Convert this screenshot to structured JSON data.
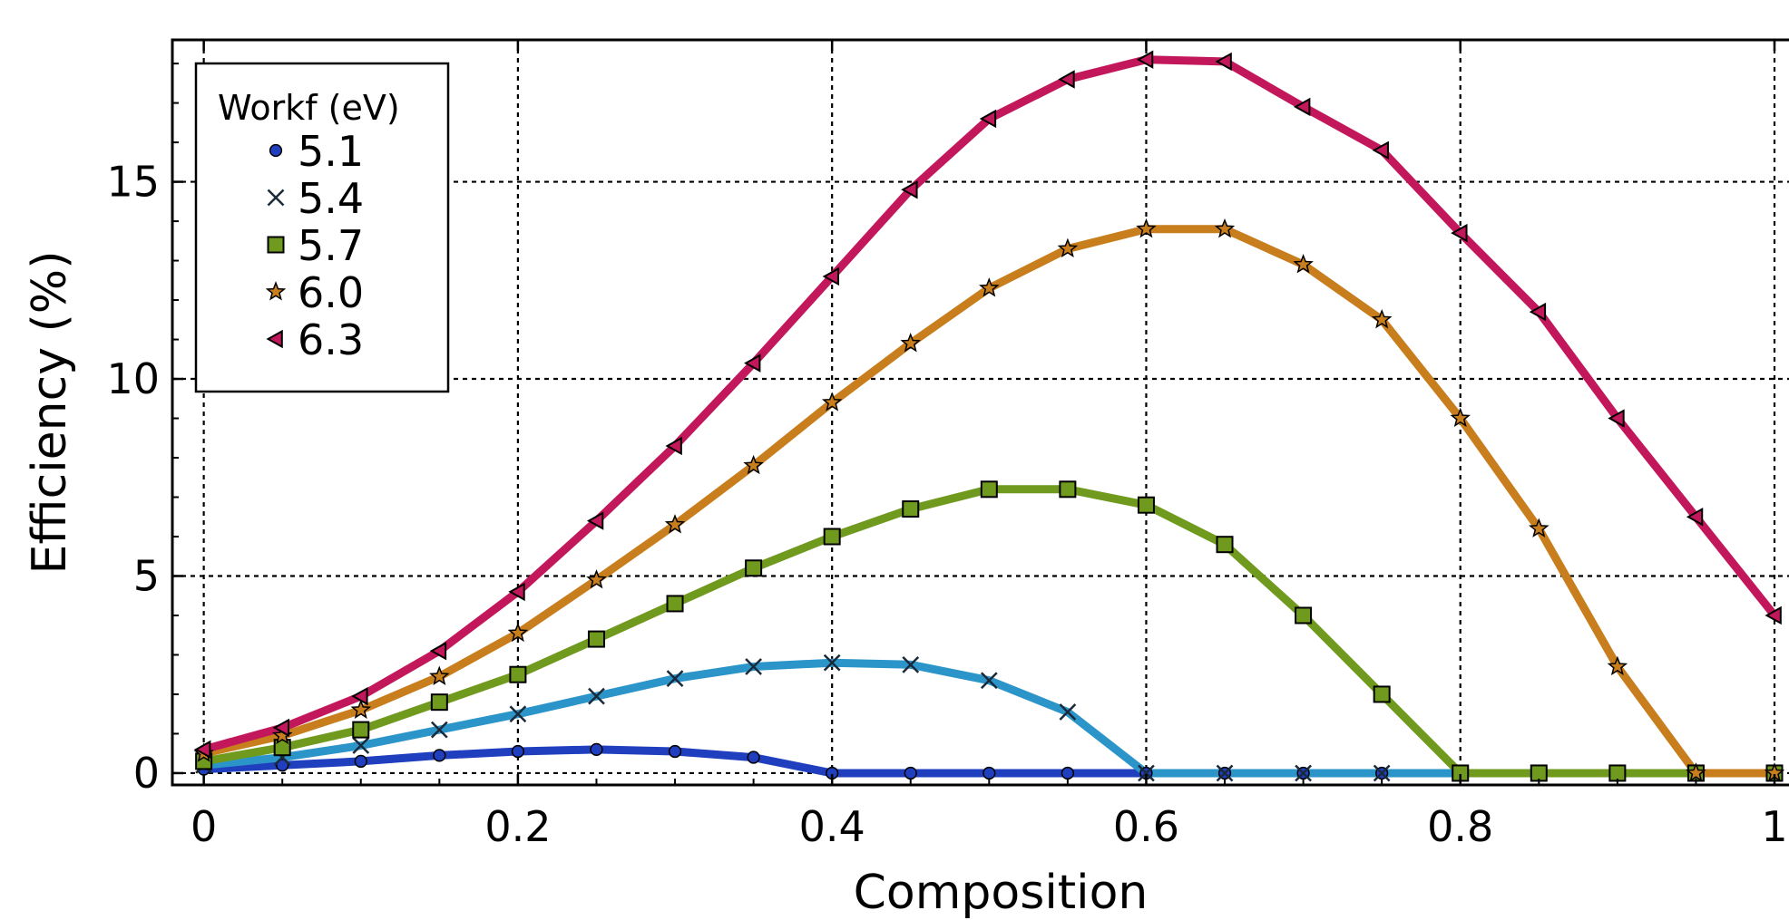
{
  "chart_data": {
    "type": "line",
    "title": "",
    "xlabel": "Composition",
    "ylabel": "Efficiency (%)",
    "xlim": [
      -0.02,
      1.0
    ],
    "ylim": [
      -0.3,
      18.6
    ],
    "xticks": [
      0,
      0.2,
      0.4,
      0.6,
      0.8,
      1
    ],
    "xtick_labels": [
      "0",
      "0.2",
      "0.4",
      "0.6",
      "0.8",
      "1"
    ],
    "yticks": [
      0,
      5,
      10,
      15
    ],
    "ytick_labels": [
      "0",
      "5",
      "10",
      "15"
    ],
    "grid": true,
    "legend": {
      "title": "Workf (eV)",
      "placement": "top-left"
    },
    "x": [
      0,
      0.05,
      0.1,
      0.15,
      0.2,
      0.25,
      0.3,
      0.35,
      0.4,
      0.45,
      0.5,
      0.55,
      0.6,
      0.65,
      0.7,
      0.75,
      0.8,
      0.85,
      0.9,
      0.95,
      1.0
    ],
    "series": [
      {
        "name": "5.1",
        "color": "#1f3fbf",
        "marker": "circle",
        "values": [
          0.1,
          0.2,
          0.3,
          0.45,
          0.55,
          0.6,
          0.55,
          0.4,
          0,
          0,
          0,
          0,
          0,
          0,
          0,
          0,
          0,
          0,
          0,
          0,
          0
        ]
      },
      {
        "name": "5.4",
        "color": "#2b95c9",
        "marker": "x",
        "values": [
          0.2,
          0.4,
          0.7,
          1.1,
          1.5,
          1.95,
          2.4,
          2.7,
          2.8,
          2.75,
          2.35,
          1.55,
          0,
          0,
          0,
          0,
          0,
          0,
          0,
          0,
          0
        ]
      },
      {
        "name": "5.7",
        "color": "#6f9a1e",
        "marker": "square",
        "values": [
          0.3,
          0.65,
          1.1,
          1.8,
          2.5,
          3.4,
          4.3,
          5.2,
          6.0,
          6.7,
          7.2,
          7.2,
          6.8,
          5.8,
          4.0,
          2.0,
          0,
          0,
          0,
          0,
          0
        ]
      },
      {
        "name": "6.0",
        "color": "#c87e1c",
        "marker": "star",
        "values": [
          0.5,
          0.95,
          1.6,
          2.45,
          3.55,
          4.9,
          6.3,
          7.8,
          9.4,
          10.9,
          12.3,
          13.3,
          13.8,
          13.8,
          12.9,
          11.5,
          9.0,
          6.2,
          2.7,
          0,
          0
        ]
      },
      {
        "name": "6.3",
        "color": "#c2185b",
        "marker": "triangle-left",
        "values": [
          0.6,
          1.15,
          1.95,
          3.1,
          4.6,
          6.4,
          8.3,
          10.4,
          12.6,
          14.8,
          16.6,
          17.6,
          18.1,
          18.05,
          16.9,
          15.8,
          13.7,
          11.7,
          9.0,
          6.5,
          4.0
        ]
      }
    ]
  }
}
